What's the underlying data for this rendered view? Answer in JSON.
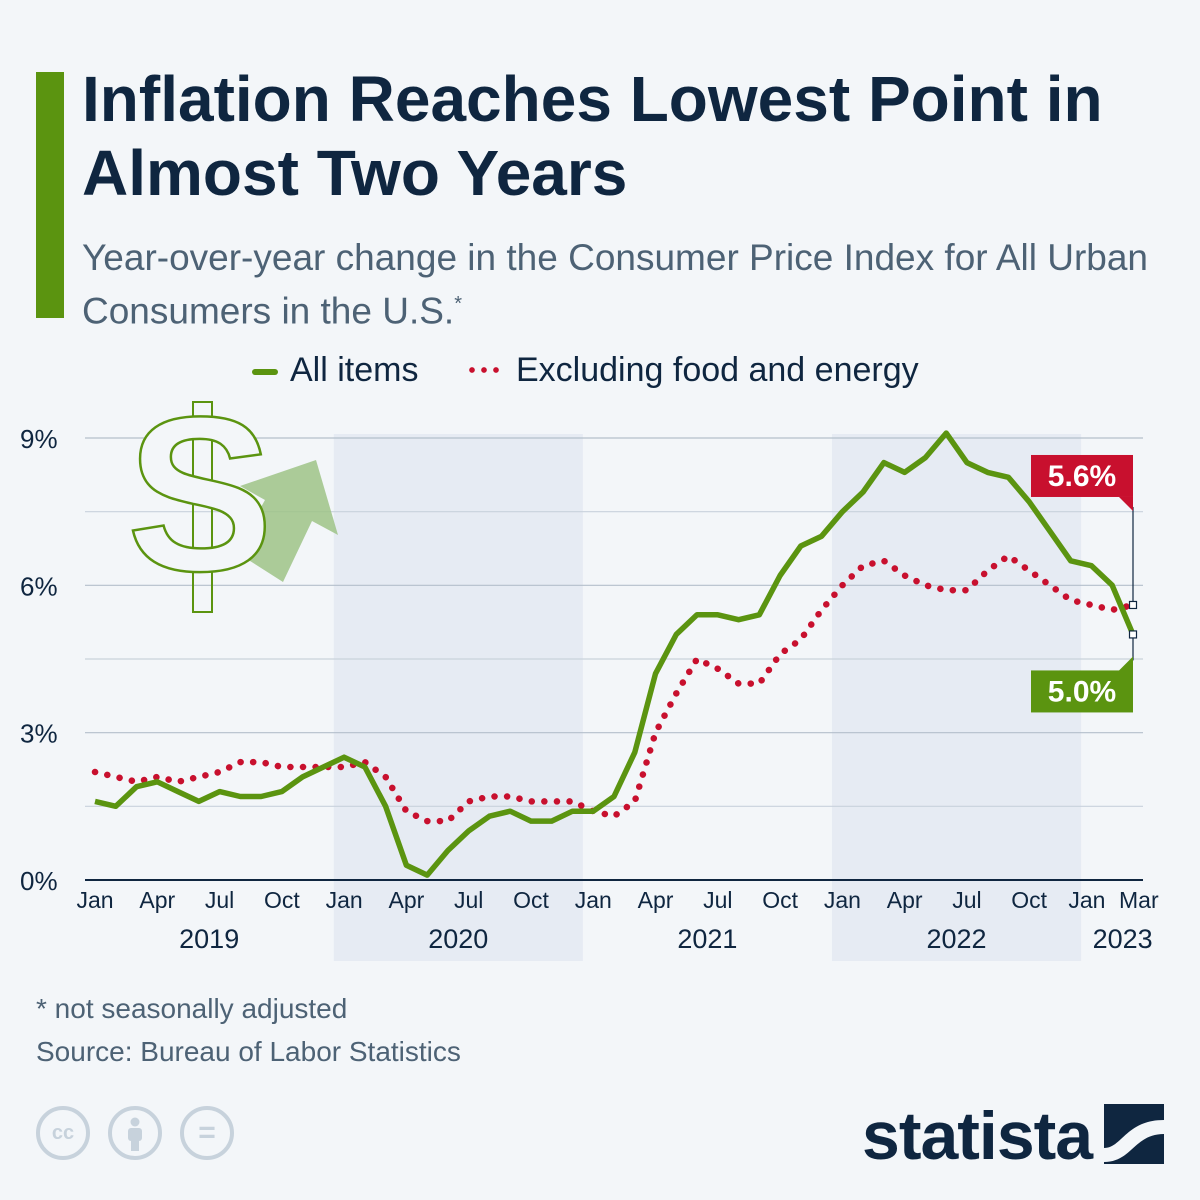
{
  "header": {
    "title": "Inflation Reaches Lowest Point in Almost Two Years",
    "subtitle": "Year-over-year change in the Consumer Price Index for All Urban Consumers in the U.S.",
    "subtitle_mark": "*"
  },
  "legend": {
    "all_items": "All items",
    "core": "Excluding food and energy"
  },
  "colors": {
    "all_items": "#5b9410",
    "core": "#c8102e",
    "title": "#0f2640",
    "shade": "#e6ebf3"
  },
  "chart_data": {
    "type": "line",
    "title": "Inflation Reaches Lowest Point in Almost Two Years",
    "xlabel": "",
    "ylabel": "",
    "ylim": [
      0,
      9
    ],
    "yticks": [
      0,
      3,
      6,
      9
    ],
    "ytick_labels": [
      "0%",
      "3%",
      "6%",
      "9%"
    ],
    "grid": true,
    "x": [
      "2019-01",
      "2019-02",
      "2019-03",
      "2019-04",
      "2019-05",
      "2019-06",
      "2019-07",
      "2019-08",
      "2019-09",
      "2019-10",
      "2019-11",
      "2019-12",
      "2020-01",
      "2020-02",
      "2020-03",
      "2020-04",
      "2020-05",
      "2020-06",
      "2020-07",
      "2020-08",
      "2020-09",
      "2020-10",
      "2020-11",
      "2020-12",
      "2021-01",
      "2021-02",
      "2021-03",
      "2021-04",
      "2021-05",
      "2021-06",
      "2021-07",
      "2021-08",
      "2021-09",
      "2021-10",
      "2021-11",
      "2021-12",
      "2022-01",
      "2022-02",
      "2022-03",
      "2022-04",
      "2022-05",
      "2022-06",
      "2022-07",
      "2022-08",
      "2022-09",
      "2022-10",
      "2022-11",
      "2022-12",
      "2023-01",
      "2023-02",
      "2023-03"
    ],
    "xtick_labels": [
      {
        "i": 0,
        "label": "Jan"
      },
      {
        "i": 3,
        "label": "Apr"
      },
      {
        "i": 6,
        "label": "Jul"
      },
      {
        "i": 9,
        "label": "Oct"
      },
      {
        "i": 12,
        "label": "Jan"
      },
      {
        "i": 15,
        "label": "Apr"
      },
      {
        "i": 18,
        "label": "Jul"
      },
      {
        "i": 21,
        "label": "Oct"
      },
      {
        "i": 24,
        "label": "Jan"
      },
      {
        "i": 27,
        "label": "Apr"
      },
      {
        "i": 30,
        "label": "Jul"
      },
      {
        "i": 33,
        "label": "Oct"
      },
      {
        "i": 36,
        "label": "Jan"
      },
      {
        "i": 39,
        "label": "Apr"
      },
      {
        "i": 42,
        "label": "Jul"
      },
      {
        "i": 45,
        "label": "Oct"
      },
      {
        "i": 48,
        "label": "Jan"
      },
      {
        "i": 50,
        "label": "Mar"
      }
    ],
    "year_labels": [
      {
        "label": "2019",
        "center": 5.5
      },
      {
        "label": "2020",
        "center": 17.5
      },
      {
        "label": "2021",
        "center": 29.5
      },
      {
        "label": "2022",
        "center": 41.5
      },
      {
        "label": "2023",
        "center": 49.5
      }
    ],
    "shaded_years": [
      {
        "start": 12,
        "end": 23
      },
      {
        "start": 36,
        "end": 47
      }
    ],
    "series": [
      {
        "name": "All items",
        "style": "solid",
        "values": [
          1.6,
          1.5,
          1.9,
          2.0,
          1.8,
          1.6,
          1.8,
          1.7,
          1.7,
          1.8,
          2.1,
          2.3,
          2.5,
          2.3,
          1.5,
          0.3,
          0.1,
          0.6,
          1.0,
          1.3,
          1.4,
          1.2,
          1.2,
          1.4,
          1.4,
          1.7,
          2.6,
          4.2,
          5.0,
          5.4,
          5.4,
          5.3,
          5.4,
          6.2,
          6.8,
          7.0,
          7.5,
          7.9,
          8.5,
          8.3,
          8.6,
          9.1,
          8.5,
          8.3,
          8.2,
          7.7,
          7.1,
          6.5,
          6.4,
          6.0,
          5.0
        ]
      },
      {
        "name": "Excluding food and energy",
        "style": "dotted",
        "values": [
          2.2,
          2.1,
          2.0,
          2.1,
          2.0,
          2.1,
          2.2,
          2.4,
          2.4,
          2.3,
          2.3,
          2.3,
          2.3,
          2.4,
          2.1,
          1.4,
          1.2,
          1.2,
          1.6,
          1.7,
          1.7,
          1.6,
          1.6,
          1.6,
          1.4,
          1.3,
          1.6,
          3.0,
          3.8,
          4.5,
          4.3,
          4.0,
          4.0,
          4.6,
          4.9,
          5.5,
          6.0,
          6.4,
          6.5,
          6.2,
          6.0,
          5.9,
          5.9,
          6.3,
          6.6,
          6.3,
          6.0,
          5.7,
          5.6,
          5.5,
          5.6
        ]
      }
    ],
    "annotations": [
      {
        "series": "Excluding food and energy",
        "text": "5.6%",
        "color": "#c8102e"
      },
      {
        "series": "All items",
        "text": "5.0%",
        "color": "#5b9410"
      }
    ]
  },
  "footer": {
    "note": "* not seasonally adjusted",
    "source": "Source: Bureau of Labor Statistics",
    "cc_label": "cc",
    "equals_label": "=",
    "brand": "statista"
  }
}
